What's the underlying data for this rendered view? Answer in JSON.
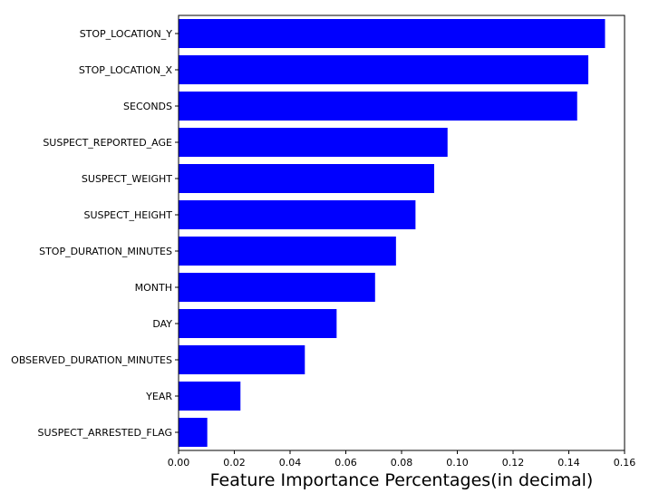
{
  "chart_data": {
    "type": "bar",
    "orientation": "horizontal",
    "categories": [
      "STOP_LOCATION_Y",
      "STOP_LOCATION_X",
      "SECONDS",
      "SUSPECT_REPORTED_AGE",
      "SUSPECT_WEIGHT",
      "SUSPECT_HEIGHT",
      "STOP_DURATION_MINUTES",
      "MONTH",
      "DAY",
      "OBSERVED_DURATION_MINUTES",
      "YEAR",
      "SUSPECT_ARRESTED_FLAG"
    ],
    "values": [
      0.153,
      0.147,
      0.143,
      0.0965,
      0.0917,
      0.085,
      0.078,
      0.0705,
      0.0567,
      0.0453,
      0.0222,
      0.0103
    ],
    "xlabel": "Feature Importance Percentages(in decimal)",
    "ylabel": "",
    "title": "",
    "xlim": [
      0,
      0.16
    ],
    "xticks": [
      "0.00",
      "0.02",
      "0.04",
      "0.06",
      "0.08",
      "0.10",
      "0.12",
      "0.14",
      "0.16"
    ],
    "bar_color": "#0000ff",
    "grid": false,
    "legend": "none"
  }
}
